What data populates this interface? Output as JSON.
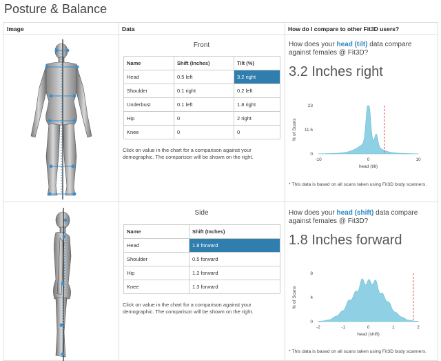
{
  "page_title": "Posture & Balance",
  "headers": {
    "image": "Image",
    "data": "Data",
    "compare": "How do I compare to other Fit3D users?"
  },
  "front": {
    "subtitle": "Front",
    "columns": [
      "Name",
      "Shift (Inches)",
      "Tilt (%)"
    ],
    "rows": [
      [
        "Head",
        "0.5 left",
        "3.2 right"
      ],
      [
        "Shoulder",
        "0.1 right",
        "0.2 left"
      ],
      [
        "Underbust",
        "0.1 left",
        "1.8 right"
      ],
      [
        "Hip",
        "0",
        "2 right"
      ],
      [
        "Knee",
        "0",
        "0"
      ]
    ],
    "note": "Click on value in the chart for a comparison against your demographic. The comparison will be shown on the right.",
    "question_pre": "How does your ",
    "question_bold": "head (tilt)",
    "question_post": " data compare against females @ Fit3D?",
    "result": "3.2 Inches right",
    "footnote": "* This data is based on all scans taken using Fit3D body scanners."
  },
  "side": {
    "subtitle": "Side",
    "columns": [
      "Name",
      "Shift (Inches)"
    ],
    "rows": [
      [
        "Head",
        "1.8 forward"
      ],
      [
        "Shoulder",
        "0.5 forward"
      ],
      [
        "Hip",
        "1.2 forward"
      ],
      [
        "Knee",
        "1.3 forward"
      ]
    ],
    "note": "Click on value in the chart for a comparison against your demographic. The comparison will be shown on the right.",
    "question_pre": "How does your ",
    "question_bold": "head (shift)",
    "question_post": " data compare against females @ Fit3D?",
    "result": "1.8 Inches forward",
    "footnote": "* This data is based on all scans taken using Fit3D body scanners."
  },
  "colors": {
    "selected": "#2f7ead",
    "area": "#8fd0e4",
    "marker": "#e05050"
  },
  "chart_data": [
    {
      "type": "area",
      "ylabel": "% of Scans",
      "xlabel": "head (tilt)",
      "yticks": [
        "23",
        "11.5",
        "0"
      ],
      "xticks": [
        "-10",
        "0",
        "10"
      ],
      "xlim": [
        -10,
        10
      ],
      "ylim": [
        0,
        23
      ],
      "marker_x": 3.2
    },
    {
      "type": "area",
      "ylabel": "% of Scans",
      "xlabel": "head (shift)",
      "yticks": [
        "8",
        "4",
        "0"
      ],
      "xticks": [
        "-2",
        "-1",
        "0",
        "1",
        "2"
      ],
      "xlim": [
        -2,
        2
      ],
      "ylim": [
        0,
        8
      ],
      "marker_x": 1.8
    }
  ]
}
